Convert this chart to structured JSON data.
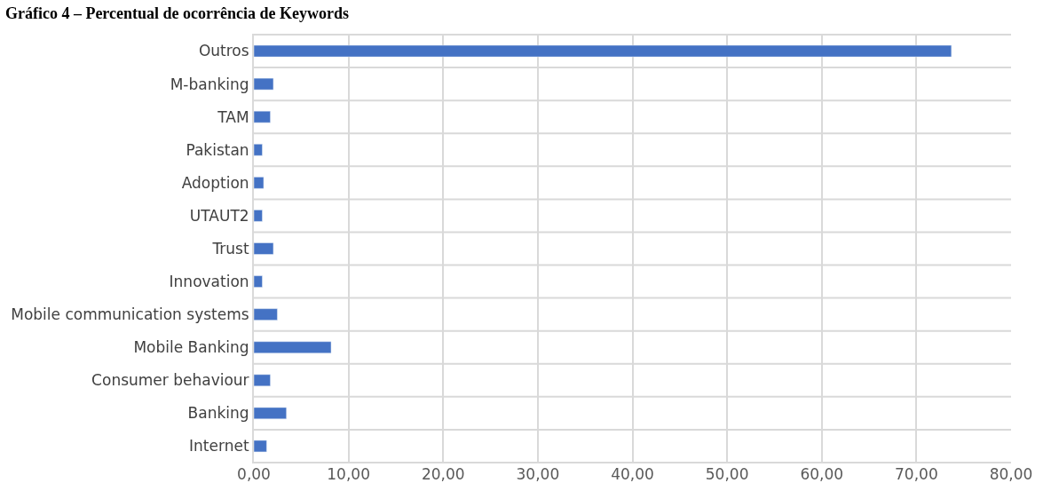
{
  "chart_data": {
    "type": "bar",
    "orientation": "horizontal",
    "title": "Gráfico 4 – Percentual de ocorrência de Keywords",
    "categories": [
      "Outros",
      "M-banking",
      "TAM",
      "Pakistan",
      "Adoption",
      "UTAUT2",
      "Trust",
      "Innovation",
      "Mobile communication systems",
      "Mobile Banking",
      "Consumer behaviour",
      "Banking",
      "Internet"
    ],
    "values": [
      73.7,
      2.06,
      1.74,
      0.89,
      1.03,
      0.89,
      2.06,
      0.89,
      2.48,
      8.16,
      1.74,
      3.44,
      1.35
    ],
    "color": "#4472c4",
    "xlim": [
      0,
      80
    ],
    "xticks": [
      {
        "value": 0,
        "label": "0,00"
      },
      {
        "value": 10,
        "label": "10,00"
      },
      {
        "value": 20,
        "label": "20,00"
      },
      {
        "value": 30,
        "label": "30,00"
      },
      {
        "value": 40,
        "label": "40,00"
      },
      {
        "value": 50,
        "label": "50,00"
      },
      {
        "value": 60,
        "label": "60,00"
      },
      {
        "value": 70,
        "label": "70,00"
      },
      {
        "value": 80,
        "label": "80,00"
      }
    ],
    "grid": true,
    "legend": false
  }
}
